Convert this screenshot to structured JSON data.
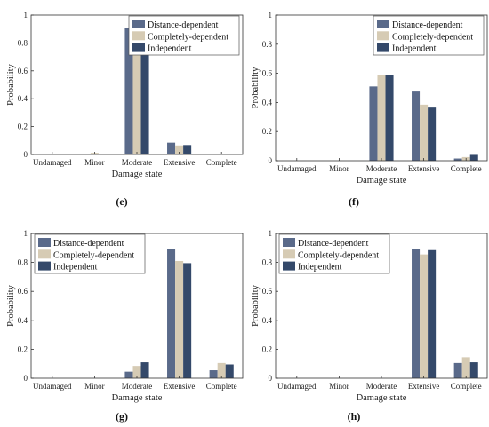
{
  "colors": {
    "distance": "#5a6a8a",
    "completely": "#d6cbb4",
    "independent": "#34496a"
  },
  "chart_data": [
    {
      "caption": "(e)",
      "type": "bar",
      "categories": [
        "Undamaged",
        "Minor",
        "Moderate",
        "Extensive",
        "Complete"
      ],
      "xlabel": "Damage state",
      "ylabel": "Probability",
      "ylim": [
        0,
        1
      ],
      "yticks": [
        "0",
        "0.2",
        "0.4",
        "0.6",
        "0.8",
        "1"
      ],
      "legend_position": "top-right",
      "series": [
        {
          "name": "Distance-dependent",
          "values": [
            0.0,
            0.002,
            0.905,
            0.085,
            0.005
          ]
        },
        {
          "name": "Completely-dependent",
          "values": [
            0.0,
            0.012,
            0.918,
            0.065,
            0.005
          ]
        },
        {
          "name": "Independent",
          "values": [
            0.0,
            0.002,
            0.925,
            0.068,
            0.003
          ]
        }
      ]
    },
    {
      "caption": "(f)",
      "type": "bar",
      "categories": [
        "Undamaged",
        "Minor",
        "Moderate",
        "Extensive",
        "Complete"
      ],
      "xlabel": "Damage state",
      "ylabel": "Probability",
      "ylim": [
        0,
        1
      ],
      "yticks": [
        "0",
        "0.2",
        "0.4",
        "0.6",
        "0.8",
        "1"
      ],
      "legend_position": "top-right",
      "series": [
        {
          "name": "Distance-dependent",
          "values": [
            0.0,
            0.0,
            0.51,
            0.475,
            0.015
          ]
        },
        {
          "name": "Completely-dependent",
          "values": [
            0.0,
            0.0,
            0.59,
            0.385,
            0.025
          ]
        },
        {
          "name": "Independent",
          "values": [
            0.0,
            0.0,
            0.59,
            0.365,
            0.04
          ]
        }
      ]
    },
    {
      "caption": "(g)",
      "type": "bar",
      "categories": [
        "Undamaged",
        "Minor",
        "Moderate",
        "Extensive",
        "Complete"
      ],
      "xlabel": "Damage state",
      "ylabel": "Probability",
      "ylim": [
        0,
        1
      ],
      "yticks": [
        "0",
        "0.2",
        "0.4",
        "0.6",
        "0.8",
        "1"
      ],
      "legend_position": "top-left",
      "series": [
        {
          "name": "Distance-dependent",
          "values": [
            0.0,
            0.0,
            0.045,
            0.895,
            0.055
          ]
        },
        {
          "name": "Completely-dependent",
          "values": [
            0.0,
            0.0,
            0.085,
            0.81,
            0.105
          ]
        },
        {
          "name": "Independent",
          "values": [
            0.0,
            0.0,
            0.11,
            0.795,
            0.095
          ]
        }
      ]
    },
    {
      "caption": "(h)",
      "type": "bar",
      "categories": [
        "Undamaged",
        "Minor",
        "Moderate",
        "Extensive",
        "Complete"
      ],
      "xlabel": "Damage state",
      "ylabel": "Probability",
      "ylim": [
        0,
        1
      ],
      "yticks": [
        "0",
        "0.2",
        "0.4",
        "0.6",
        "0.8",
        "1"
      ],
      "legend_position": "top-left",
      "series": [
        {
          "name": "Distance-dependent",
          "values": [
            0.0,
            0.0,
            0.0,
            0.895,
            0.105
          ]
        },
        {
          "name": "Completely-dependent",
          "values": [
            0.0,
            0.0,
            0.0,
            0.855,
            0.145
          ]
        },
        {
          "name": "Independent",
          "values": [
            0.0,
            0.0,
            0.0,
            0.885,
            0.11
          ]
        }
      ]
    }
  ]
}
